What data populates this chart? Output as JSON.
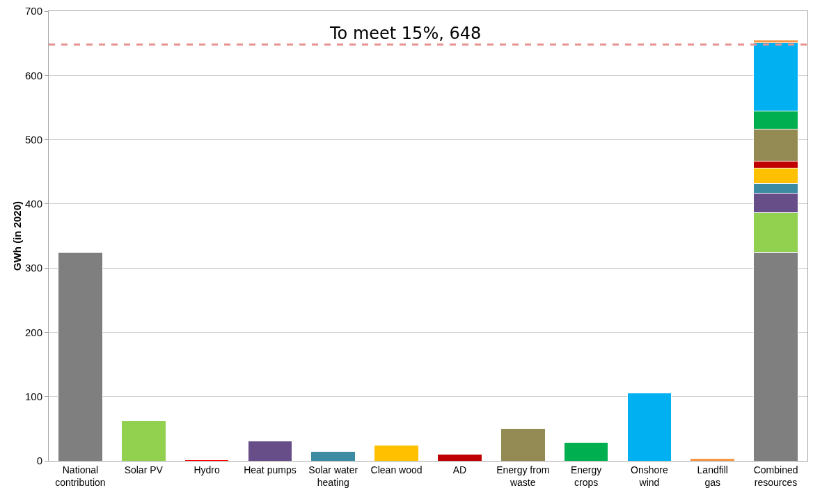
{
  "chart_data": {
    "type": "bar",
    "stacked": true,
    "ylabel": "GWh (in 2020)",
    "categories": [
      "National contribution",
      "Solar PV",
      "Hydro",
      "Heat pumps",
      "Solar water heating",
      "Clean wood",
      "AD",
      "Energy from waste",
      "Energy crops",
      "Onshore wind",
      "Landfill gas",
      "Combined resources"
    ],
    "series": [
      {
        "color": "#7f7f7f",
        "values": [
          324,
          null,
          null,
          null,
          null,
          null,
          null,
          null,
          null,
          null,
          null,
          324
        ]
      },
      {
        "color": "#92d050",
        "values": [
          null,
          62,
          null,
          null,
          null,
          null,
          null,
          null,
          null,
          null,
          null,
          62
        ]
      },
      {
        "color": "#ff0000",
        "values": [
          null,
          null,
          2,
          null,
          null,
          null,
          null,
          null,
          null,
          null,
          null,
          null
        ]
      },
      {
        "color": "#674e88",
        "values": [
          null,
          null,
          null,
          31,
          null,
          null,
          null,
          null,
          null,
          null,
          null,
          31
        ]
      },
      {
        "color": "#3c8ba3",
        "values": [
          null,
          null,
          null,
          null,
          15,
          null,
          null,
          null,
          null,
          null,
          null,
          15
        ]
      },
      {
        "color": "#ffc000",
        "values": [
          null,
          null,
          null,
          null,
          null,
          24,
          null,
          null,
          null,
          null,
          null,
          24
        ]
      },
      {
        "color": "#c00000",
        "values": [
          null,
          null,
          null,
          null,
          null,
          null,
          10,
          null,
          null,
          null,
          null,
          10
        ]
      },
      {
        "color": "#948a54",
        "values": [
          null,
          null,
          null,
          null,
          null,
          null,
          null,
          50,
          null,
          null,
          null,
          50
        ]
      },
      {
        "color": "#00b050",
        "values": [
          null,
          null,
          null,
          null,
          null,
          null,
          null,
          null,
          29,
          null,
          null,
          29
        ]
      },
      {
        "color": "#00b0f0",
        "values": [
          null,
          null,
          null,
          null,
          null,
          null,
          null,
          null,
          null,
          106,
          null,
          106
        ]
      },
      {
        "color": "#f79646",
        "values": [
          null,
          null,
          null,
          null,
          null,
          null,
          null,
          null,
          null,
          null,
          4,
          4
        ]
      }
    ],
    "ylim": [
      0,
      700
    ],
    "yticks": [
      0,
      100,
      200,
      300,
      400,
      500,
      600,
      700
    ],
    "grid": "y",
    "ref_lines": [
      {
        "axis": "y",
        "value": 648,
        "label": "To meet 15%, 648",
        "color": "#e6928f",
        "line_style": "dashed"
      }
    ]
  }
}
